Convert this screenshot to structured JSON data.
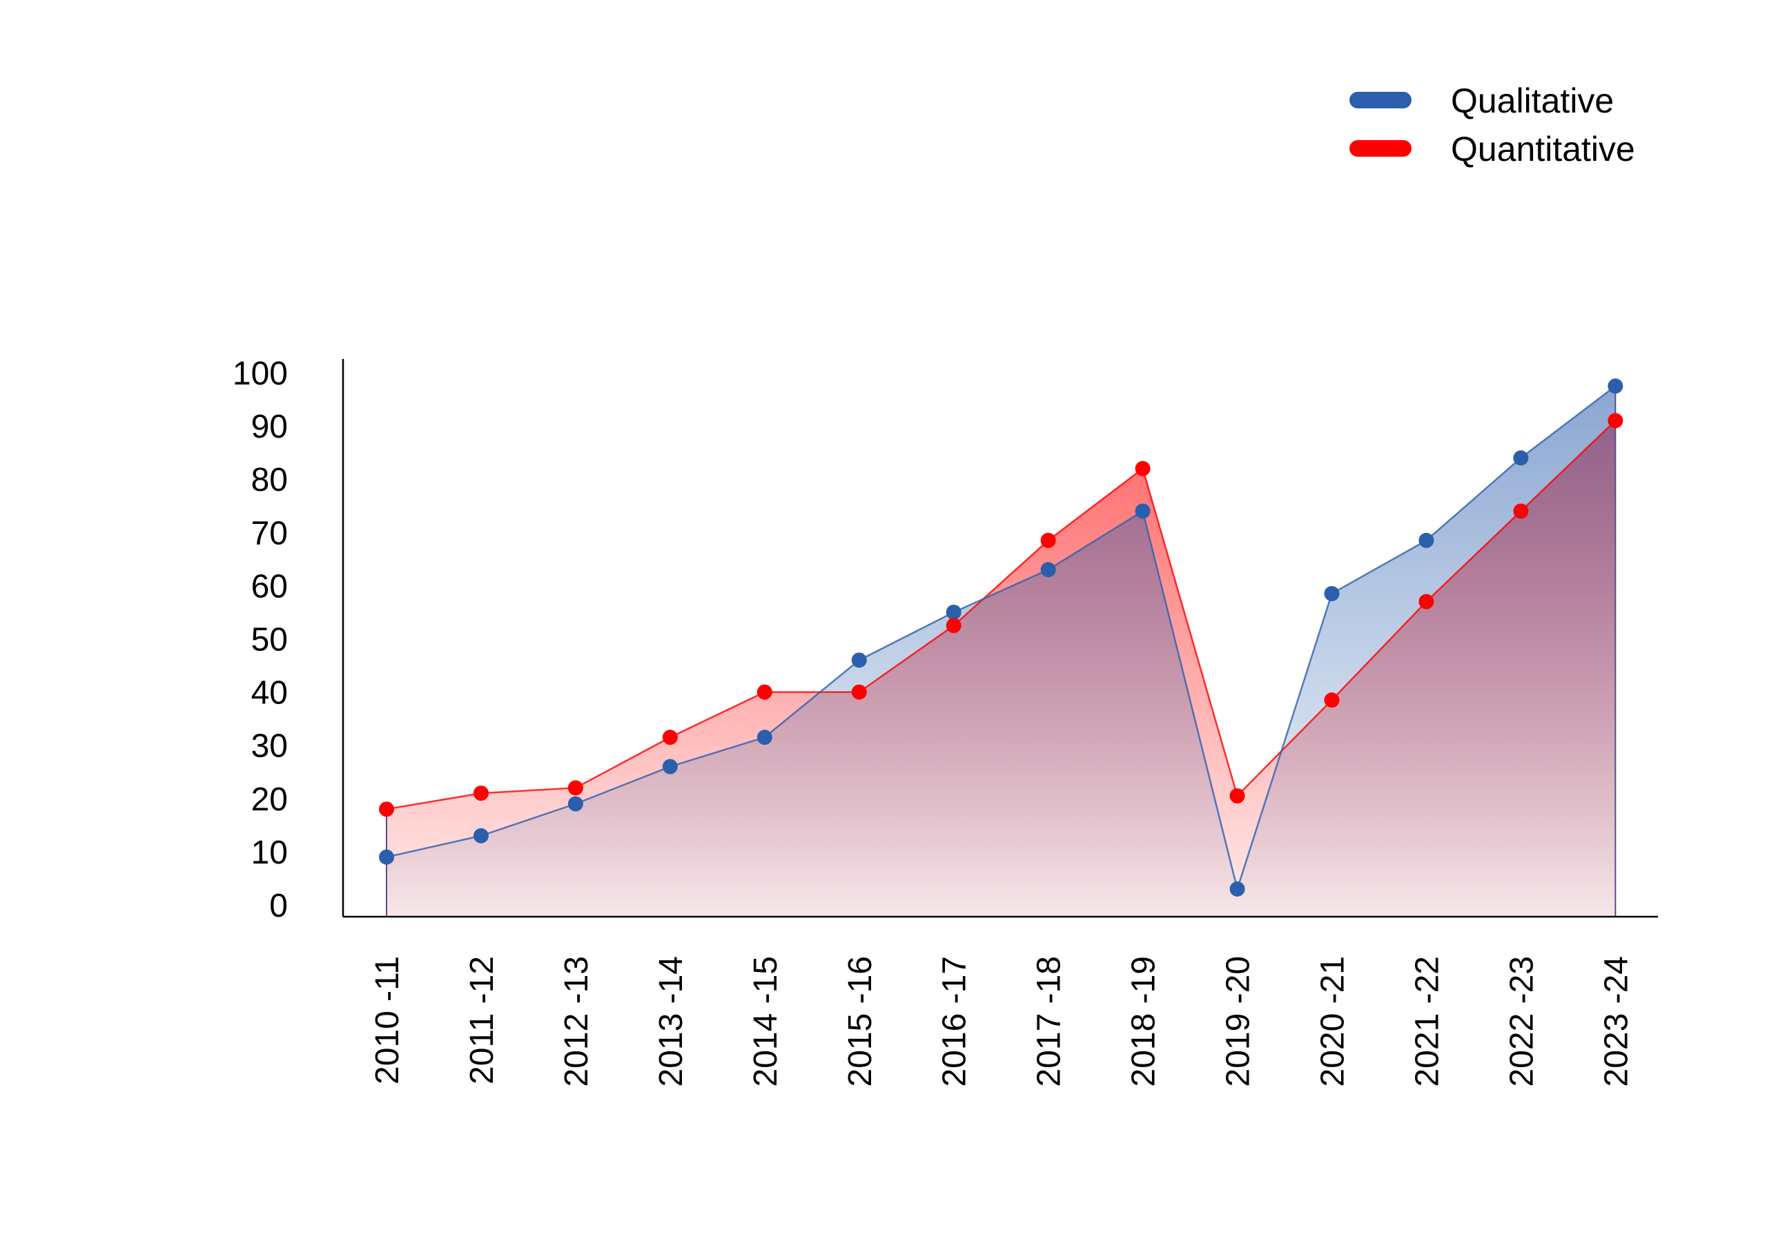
{
  "chart_data": {
    "type": "area",
    "categories": [
      "2010 -11",
      "2011 -12",
      "2012 -13",
      "2013 -14",
      "2014 -15",
      "2015 -16",
      "2016 -17",
      "2017 -18",
      "2018 -19",
      "2019 -20",
      "2020 -21",
      "2021 -22",
      "2022 -23",
      "2023 -24"
    ],
    "series": [
      {
        "name": "Qualitative",
        "color": "#2b5fad",
        "values": [
          9,
          13,
          19,
          26,
          31.5,
          46,
          55,
          63,
          74,
          3,
          58.5,
          68.5,
          84,
          97.5
        ]
      },
      {
        "name": "Quantitative",
        "color": "#ff0000",
        "values": [
          18,
          21,
          22,
          31.5,
          40,
          40,
          52.5,
          68.5,
          82,
          20.5,
          38.5,
          57,
          74,
          91
        ]
      }
    ],
    "yticks": [
      0,
      10,
      20,
      30,
      40,
      50,
      60,
      70,
      80,
      90,
      100
    ],
    "ylim": [
      -2,
      104
    ],
    "title": "",
    "xlabel": "",
    "ylabel": "",
    "legend_position": "top-right",
    "grid": false
  }
}
